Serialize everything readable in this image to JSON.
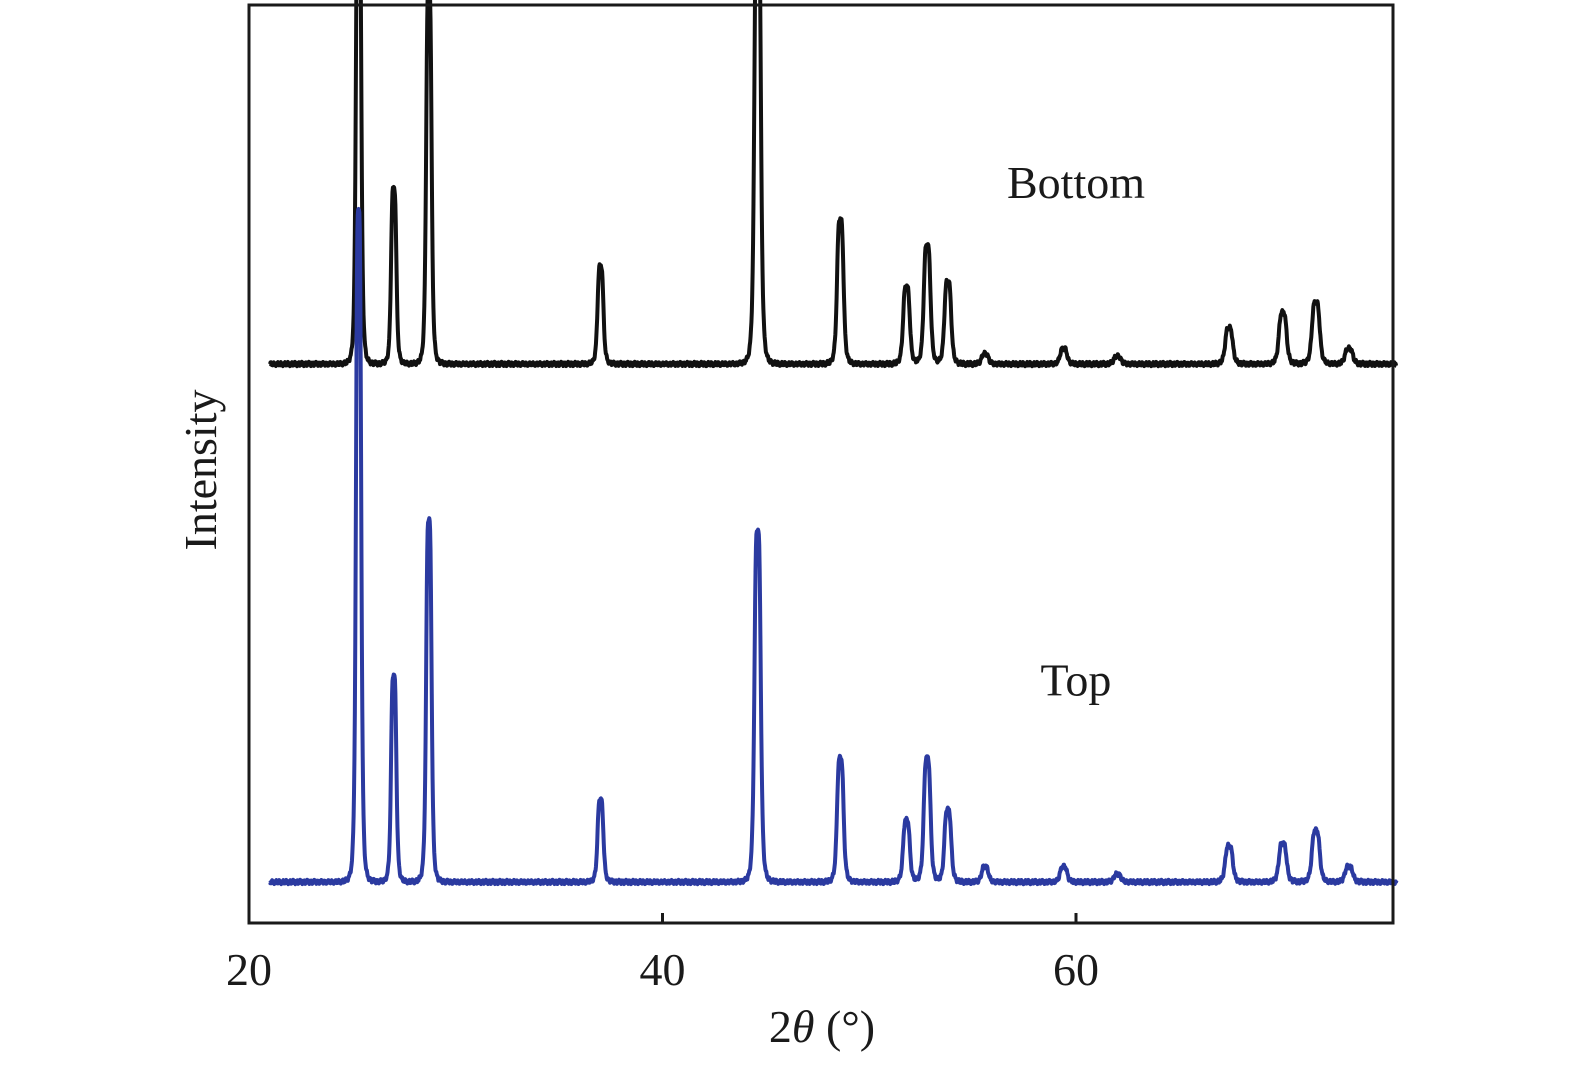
{
  "chart_data": {
    "type": "line",
    "xlabel_prefix": "2",
    "xlabel_symbol": "θ",
    "xlabel_suffix": " (°)",
    "ylabel": "Intensity",
    "xlim": [
      20,
      76
    ],
    "xticks": [
      20,
      40,
      60
    ],
    "xtick_labels": [
      "20",
      "40",
      "60"
    ],
    "yticks_shown": false,
    "grid": false,
    "y_scale": "arbitrary intensity, curves vertically offset",
    "series": [
      {
        "name": "Bottom",
        "color": "#111111",
        "offset": 100,
        "peaks": [
          {
            "x": 25.3,
            "y": 100
          },
          {
            "x": 27.0,
            "y": 34
          },
          {
            "x": 28.7,
            "y": 73
          },
          {
            "x": 37.0,
            "y": 19
          },
          {
            "x": 44.6,
            "y": 94
          },
          {
            "x": 48.6,
            "y": 28
          },
          {
            "x": 51.8,
            "y": 15
          },
          {
            "x": 52.8,
            "y": 23
          },
          {
            "x": 53.8,
            "y": 16
          },
          {
            "x": 55.6,
            "y": 2
          },
          {
            "x": 59.4,
            "y": 3
          },
          {
            "x": 62.0,
            "y": 1.5
          },
          {
            "x": 67.4,
            "y": 7
          },
          {
            "x": 70.0,
            "y": 10
          },
          {
            "x": 71.6,
            "y": 12
          },
          {
            "x": 73.2,
            "y": 3
          }
        ]
      },
      {
        "name": "Top",
        "color": "#2b3aa0",
        "offset": 0,
        "peaks": [
          {
            "x": 25.3,
            "y": 130
          },
          {
            "x": 27.0,
            "y": 40
          },
          {
            "x": 28.7,
            "y": 70
          },
          {
            "x": 37.0,
            "y": 16
          },
          {
            "x": 44.6,
            "y": 68
          },
          {
            "x": 48.6,
            "y": 24
          },
          {
            "x": 51.8,
            "y": 12
          },
          {
            "x": 52.8,
            "y": 24
          },
          {
            "x": 53.8,
            "y": 14
          },
          {
            "x": 55.6,
            "y": 3
          },
          {
            "x": 59.4,
            "y": 3
          },
          {
            "x": 62.0,
            "y": 1.5
          },
          {
            "x": 67.4,
            "y": 7
          },
          {
            "x": 70.0,
            "y": 7.5
          },
          {
            "x": 71.6,
            "y": 10
          },
          {
            "x": 73.2,
            "y": 3
          }
        ]
      }
    ],
    "annotations": [
      {
        "text": "Bottom",
        "x": 60,
        "y": 132
      },
      {
        "text": "Top",
        "x": 60,
        "y": 36
      }
    ]
  }
}
